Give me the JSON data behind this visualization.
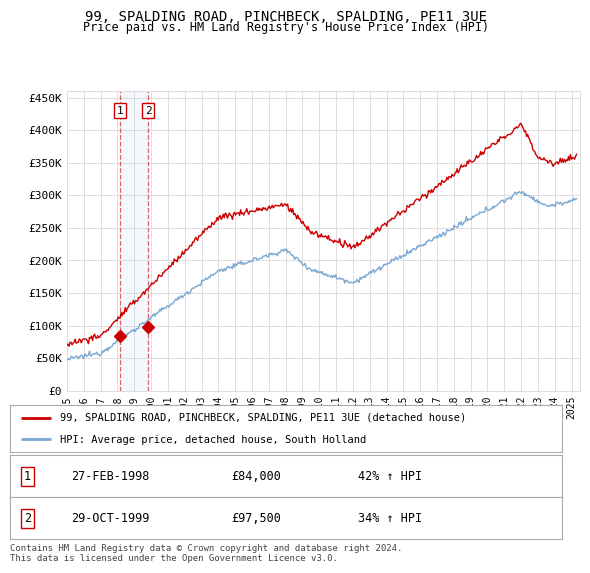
{
  "title": "99, SPALDING ROAD, PINCHBECK, SPALDING, PE11 3UE",
  "subtitle": "Price paid vs. HM Land Registry's House Price Index (HPI)",
  "ylabel_ticks": [
    "£0",
    "£50K",
    "£100K",
    "£150K",
    "£200K",
    "£250K",
    "£300K",
    "£350K",
    "£400K",
    "£450K"
  ],
  "ytick_values": [
    0,
    50000,
    100000,
    150000,
    200000,
    250000,
    300000,
    350000,
    400000,
    450000
  ],
  "ylim": [
    0,
    460000
  ],
  "xlim_start": 1995.0,
  "xlim_end": 2025.5,
  "sale1_x": 1998.15,
  "sale1_y": 84000,
  "sale1_label": "1",
  "sale1_date": "27-FEB-1998",
  "sale1_price": "£84,000",
  "sale1_hpi": "42% ↑ HPI",
  "sale2_x": 1999.83,
  "sale2_y": 97500,
  "sale2_label": "2",
  "sale2_date": "29-OCT-1999",
  "sale2_price": "£97,500",
  "sale2_hpi": "34% ↑ HPI",
  "legend_line1": "99, SPALDING ROAD, PINCHBECK, SPALDING, PE11 3UE (detached house)",
  "legend_line2": "HPI: Average price, detached house, South Holland",
  "footer": "Contains HM Land Registry data © Crown copyright and database right 2024.\nThis data is licensed under the Open Government Licence v3.0.",
  "hpi_color": "#7aa8d2",
  "price_color": "#cc0000",
  "background_color": "#ffffff",
  "plot_bg_color": "#ffffff",
  "grid_color": "#dddddd",
  "xticks": [
    1995,
    1996,
    1997,
    1998,
    1999,
    2000,
    2001,
    2002,
    2003,
    2004,
    2005,
    2006,
    2007,
    2008,
    2009,
    2010,
    2011,
    2012,
    2013,
    2014,
    2015,
    2016,
    2017,
    2018,
    2019,
    2020,
    2021,
    2022,
    2023,
    2024,
    2025
  ]
}
